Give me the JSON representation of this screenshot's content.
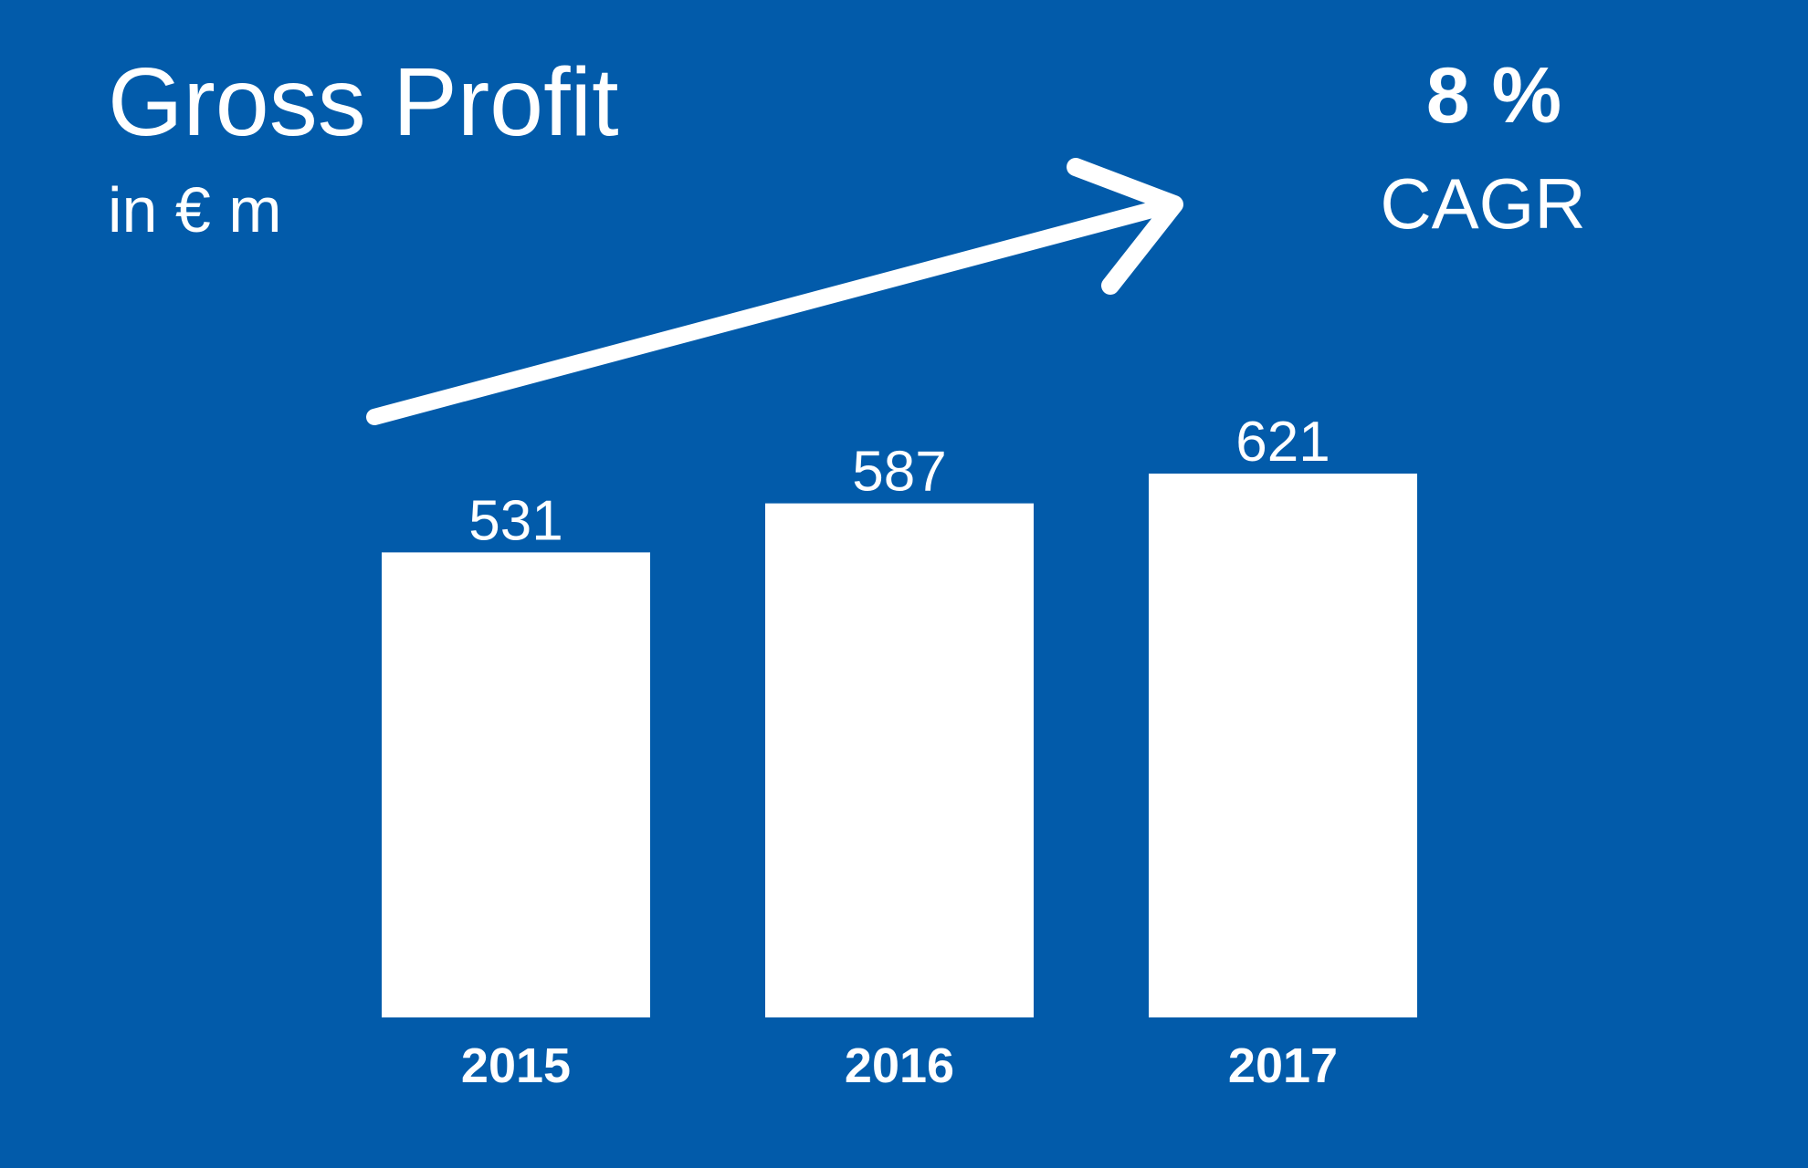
{
  "chart_data": {
    "type": "bar",
    "title": "Gross Profit",
    "subtitle": "in € m",
    "categories": [
      "2015",
      "2016",
      "2017"
    ],
    "values": [
      531,
      587,
      621
    ],
    "ylim": [
      0,
      621
    ],
    "grid": false,
    "annotation": {
      "value": "8 %",
      "label": "CAGR"
    }
  },
  "colors": {
    "background": "#025BAA",
    "bars": "#FFFFFF",
    "text": "#FFFFFF"
  }
}
